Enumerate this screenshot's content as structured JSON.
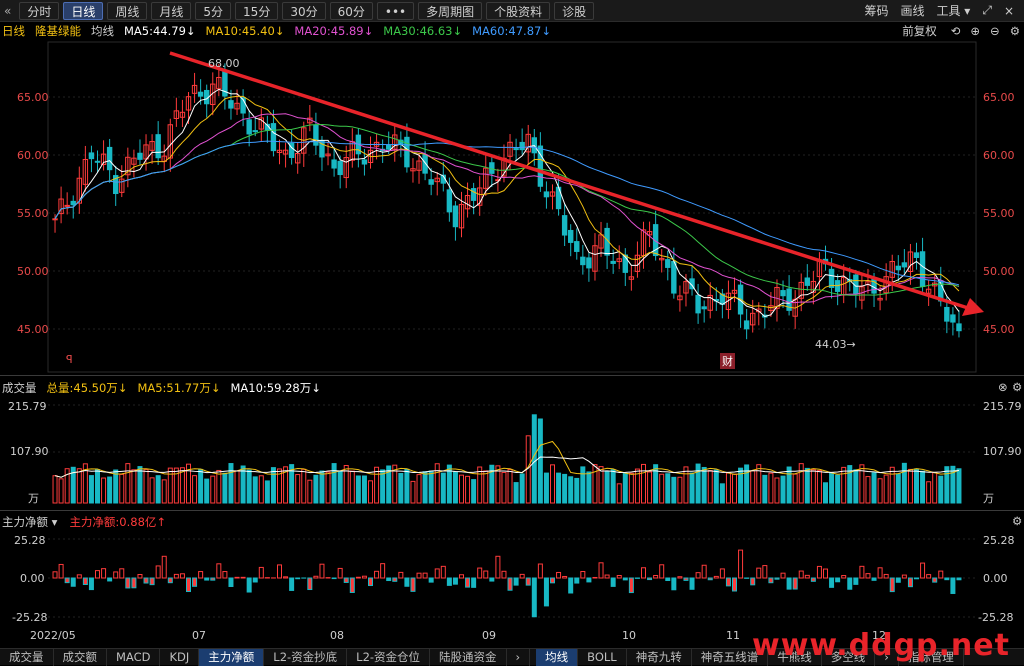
{
  "toolbar": {
    "collapse_icon": "double-chevron-left-icon",
    "buttons": [
      "分时",
      "日线",
      "周线",
      "月线",
      "5分",
      "15分",
      "30分",
      "60分",
      "•••",
      "多周期图",
      "个股资料",
      "诊股"
    ],
    "active": "日线",
    "right": [
      "筹码",
      "画线",
      "工具 ▾"
    ]
  },
  "legend": {
    "period": "日线",
    "name": "隆基绿能",
    "avg_label": "均线",
    "ma": [
      {
        "text": "MA5:44.79↓",
        "color": "#ffffff"
      },
      {
        "text": "MA10:45.40↓",
        "color": "#f2c012"
      },
      {
        "text": "MA20:45.89↓",
        "color": "#e052d0"
      },
      {
        "text": "MA30:46.63↓",
        "color": "#3cc84a"
      },
      {
        "text": "MA60:47.87↓",
        "color": "#3f9bff"
      }
    ],
    "adjust": "前复权"
  },
  "price_axis": [
    "65.00",
    "60.00",
    "55.00",
    "50.00",
    "45.00"
  ],
  "annotations": {
    "high": "68.00",
    "low": "44.03→",
    "finance": "财",
    "marker": "ꟼ"
  },
  "volume": {
    "title": "成交量",
    "total": "总量:45.50万↓",
    "ma5": "MA5:51.77万↓",
    "ma10": "MA10:59.28万↓",
    "axis": [
      "215.79",
      "107.90",
      "万"
    ]
  },
  "flow": {
    "title": "主力净额 ▾",
    "value": "主力净额:0.88亿↑",
    "axis": [
      "25.28",
      "0.00",
      "-25.28"
    ]
  },
  "dates": [
    "2022/05",
    "07",
    "08",
    "09",
    "10",
    "11",
    "12"
  ],
  "bottom_tabs": [
    "成交量",
    "成交额",
    "MACD",
    "KDJ",
    "主力净额",
    "L2-资金抄底",
    "L2-资金仓位",
    "陆股通资金",
    "›",
    "均线",
    "BOLL",
    "神奇九转",
    "神奇五线谱",
    "牛熊线",
    "多空线",
    "›",
    "指标管理"
  ],
  "bottom_active": [
    "主力净额",
    "均线"
  ],
  "watermark": "www.ddgp.net",
  "colors": {
    "up": "#ff3b3b",
    "down": "#18b8c4",
    "ma5": "#ffffff",
    "ma10": "#f2c012",
    "ma20": "#e052d0",
    "ma30": "#3cc84a",
    "ma60": "#3f9bff",
    "trend": "#e8242a"
  }
}
